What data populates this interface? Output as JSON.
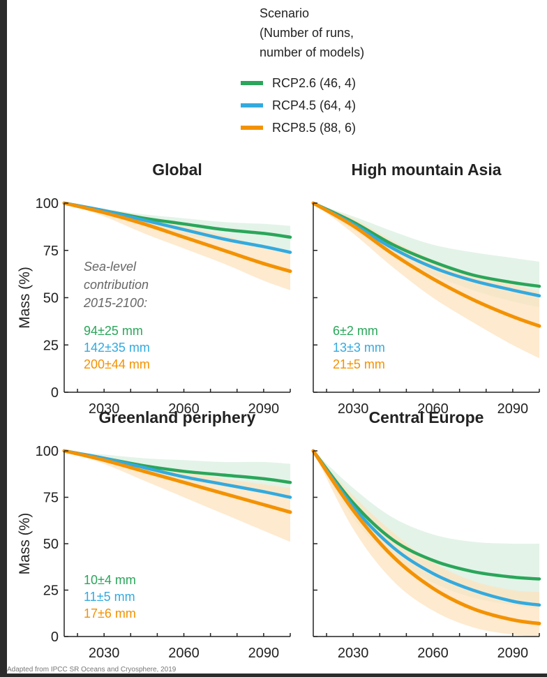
{
  "legend": {
    "title_lines": [
      "Scenario",
      "(Number of runs,",
      "number of models)"
    ],
    "entries": [
      {
        "label": "RCP2.6 (46, 4)",
        "color": "#2aa65a"
      },
      {
        "label": "RCP4.5 (64, 4)",
        "color": "#33aadf"
      },
      {
        "label": "RCP8.5 (88, 6)",
        "color": "#f39200"
      }
    ]
  },
  "colors": {
    "rcp26": "#2aa65a",
    "rcp45": "#33aadf",
    "rcp85": "#f39200",
    "band26": "#d9efe0",
    "band85": "#fde3bf",
    "axis": "#222222",
    "annotation": "#666666"
  },
  "ylabel": "Mass (%)",
  "source": "Adapted from IPCC SR Oceans and Cryosphere, 2019",
  "chart_data": [
    {
      "type": "line",
      "title": "Global",
      "ylabel": "Mass (%)",
      "xlim": [
        2015,
        2100
      ],
      "ylim": [
        0,
        100
      ],
      "xticks": [
        2030,
        2060,
        2090
      ],
      "yticks": [
        0,
        25,
        50,
        75,
        100
      ],
      "x": [
        2015,
        2030,
        2045,
        2060,
        2075,
        2090,
        2100
      ],
      "series": [
        {
          "name": "RCP2.6 (46, 4)",
          "key": "rcp26",
          "values": [
            100,
            96,
            92,
            89,
            86,
            84,
            82
          ],
          "lower": [
            100,
            95,
            88,
            83,
            80,
            77,
            75
          ],
          "upper": [
            100,
            97,
            94,
            92,
            90,
            89,
            88
          ]
        },
        {
          "name": "RCP4.5 (64, 4)",
          "key": "rcp45",
          "values": [
            100,
            96,
            91,
            86,
            81,
            77,
            74
          ]
        },
        {
          "name": "RCP8.5 (88, 6)",
          "key": "rcp85",
          "values": [
            100,
            95,
            89,
            82,
            75,
            68,
            64
          ],
          "lower": [
            100,
            93,
            84,
            76,
            68,
            59,
            54
          ],
          "upper": [
            100,
            97,
            93,
            88,
            83,
            77,
            74
          ]
        }
      ],
      "annotation": {
        "lines": [
          "Sea-level",
          "contribution",
          "2015-2100:"
        ],
        "values": [
          "94±25 mm",
          "142±35 mm",
          "200±44 mm"
        ]
      }
    },
    {
      "type": "line",
      "title": "High mountain Asia",
      "ylabel": "Mass (%)",
      "xlim": [
        2015,
        2100
      ],
      "ylim": [
        0,
        100
      ],
      "xticks": [
        2030,
        2060,
        2090
      ],
      "yticks": [
        0,
        25,
        50,
        75,
        100
      ],
      "x": [
        2015,
        2030,
        2045,
        2060,
        2075,
        2090,
        2100
      ],
      "series": [
        {
          "name": "RCP2.6 (46, 4)",
          "key": "rcp26",
          "values": [
            100,
            90,
            78,
            69,
            62,
            58,
            56
          ],
          "lower": [
            100,
            86,
            72,
            62,
            54,
            48,
            45
          ],
          "upper": [
            100,
            93,
            85,
            78,
            74,
            71,
            69
          ]
        },
        {
          "name": "RCP4.5 (64, 4)",
          "key": "rcp45",
          "values": [
            100,
            89,
            76,
            66,
            59,
            54,
            51
          ]
        },
        {
          "name": "RCP8.5 (88, 6)",
          "key": "rcp85",
          "values": [
            100,
            88,
            73,
            60,
            49,
            40,
            35
          ],
          "lower": [
            100,
            84,
            66,
            50,
            37,
            25,
            18
          ],
          "upper": [
            100,
            92,
            80,
            70,
            62,
            57,
            53
          ]
        }
      ],
      "annotation": {
        "lines": [],
        "values": [
          "6±2 mm",
          "13±3 mm",
          "21±5 mm"
        ]
      }
    },
    {
      "type": "line",
      "title": "Greenland periphery",
      "ylabel": "Mass (%)",
      "xlim": [
        2015,
        2100
      ],
      "ylim": [
        0,
        100
      ],
      "xticks": [
        2030,
        2060,
        2090
      ],
      "yticks": [
        0,
        25,
        50,
        75,
        100
      ],
      "x": [
        2015,
        2030,
        2045,
        2060,
        2075,
        2090,
        2100
      ],
      "series": [
        {
          "name": "RCP2.6 (46, 4)",
          "key": "rcp26",
          "values": [
            100,
            96,
            92,
            89,
            87,
            85,
            83
          ],
          "lower": [
            100,
            95,
            89,
            84,
            81,
            78,
            76
          ],
          "upper": [
            100,
            98,
            96,
            95,
            94,
            94,
            93
          ]
        },
        {
          "name": "RCP4.5 (64, 4)",
          "key": "rcp45",
          "values": [
            100,
            96,
            91,
            86,
            82,
            78,
            75
          ]
        },
        {
          "name": "RCP8.5 (88, 6)",
          "key": "rcp85",
          "values": [
            100,
            95,
            89,
            83,
            77,
            71,
            67
          ],
          "lower": [
            100,
            93,
            84,
            75,
            66,
            57,
            51
          ],
          "upper": [
            100,
            97,
            93,
            89,
            85,
            82,
            80
          ]
        }
      ],
      "annotation": {
        "lines": [],
        "values": [
          "10±4 mm",
          "11±5 mm",
          "17±6 mm"
        ]
      }
    },
    {
      "type": "line",
      "title": "Central Europe",
      "ylabel": "Mass (%)",
      "xlim": [
        2015,
        2100
      ],
      "ylim": [
        0,
        100
      ],
      "xticks": [
        2030,
        2060,
        2090
      ],
      "yticks": [
        0,
        25,
        50,
        75,
        100
      ],
      "x": [
        2015,
        2030,
        2045,
        2060,
        2075,
        2090,
        2100
      ],
      "series": [
        {
          "name": "RCP2.6 (46, 4)",
          "key": "rcp26",
          "values": [
            100,
            72,
            52,
            41,
            35,
            32,
            31
          ],
          "lower": [
            100,
            64,
            42,
            29,
            21,
            17,
            15
          ],
          "upper": [
            100,
            80,
            64,
            55,
            51,
            50,
            50
          ]
        },
        {
          "name": "RCP4.5 (64, 4)",
          "key": "rcp45",
          "values": [
            100,
            70,
            48,
            34,
            25,
            19,
            17
          ]
        },
        {
          "name": "RCP8.5 (88, 6)",
          "key": "rcp85",
          "values": [
            100,
            68,
            43,
            26,
            15,
            9,
            7
          ],
          "lower": [
            100,
            58,
            30,
            14,
            5,
            1,
            0
          ],
          "upper": [
            100,
            76,
            56,
            40,
            30,
            25,
            24
          ]
        }
      ],
      "annotation": {
        "lines": [],
        "values": []
      }
    }
  ]
}
